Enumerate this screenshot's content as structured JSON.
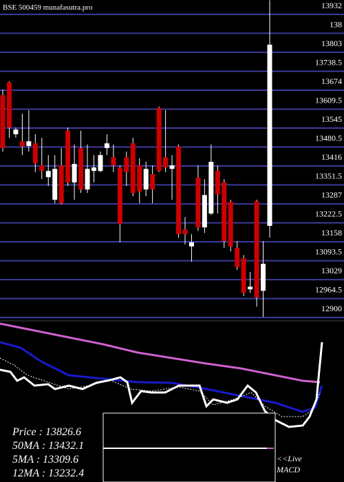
{
  "chart_data": {
    "type": "candlestick",
    "title": "BSE 500459 munafasutra.pro",
    "ylim": [
      12891,
      13981
    ],
    "yticks": [
      13932,
      {
        "value": 13867.5,
        "label": "138"
      },
      13803,
      13738.5,
      13674,
      13609.5,
      13545,
      13480.5,
      13416,
      13351.5,
      13287,
      13222.5,
      13158,
      13093.5,
      13029,
      12964.5,
      12900
    ],
    "grid": true,
    "grid_color": "#3c3c9c",
    "up_color": "#ffffff",
    "down_color": "#cc0000",
    "open": [
      13657,
      13700,
      13524,
      13500,
      13484,
      13493,
      13418,
      13378,
      13301,
      13418,
      13536,
      13360,
      13477,
      13336,
      13399,
      13399,
      13477,
      13446,
      13411,
      13446,
      13493,
      13418,
      13336,
      13388,
      13613,
      13446,
      13406,
      13482,
      13200,
      13142,
      13376,
      13207,
      13254,
      13399,
      13360,
      13294,
      13137,
      13102,
      12996,
      13296,
      12991,
      13212
    ],
    "high": [
      13676,
      13704,
      13547,
      13594,
      13606,
      13524,
      13512,
      13453,
      13453,
      13477,
      13547,
      13489,
      13536,
      13489,
      13453,
      13465,
      13524,
      13489,
      13418,
      13465,
      13512,
      13442,
      13430,
      13418,
      13618,
      13606,
      13453,
      13489,
      13242,
      13184,
      13418,
      13371,
      13489,
      13418,
      13371,
      13301,
      13160,
      13113,
      13055,
      13301,
      13160,
      13980
    ],
    "low": [
      13465,
      13512,
      13512,
      13453,
      13465,
      13395,
      13371,
      13348,
      13289,
      13285,
      13348,
      13301,
      13324,
      13324,
      13360,
      13395,
      13453,
      13395,
      13156,
      13348,
      13313,
      13289,
      13313,
      13289,
      13395,
      13395,
      13301,
      13172,
      13149,
      13090,
      13195,
      13188,
      13249,
      13254,
      13137,
      13125,
      13062,
      12973,
      12984,
      12937,
      12902,
      13172
    ],
    "close": [
      13477,
      13547,
      13540,
      13482,
      13500,
      13425,
      13399,
      13399,
      13406,
      13289,
      13360,
      13423,
      13336,
      13406,
      13411,
      13453,
      13493,
      13418,
      13219,
      13395,
      13324,
      13329,
      13406,
      13336,
      13399,
      13411,
      13418,
      13184,
      13184,
      13156,
      13207,
      13317,
      13430,
      13320,
      13160,
      13142,
      13071,
      12984,
      13005,
      12968,
      13083,
      13829
    ],
    "info": [
      "Price   : 13826.6",
      "50MA : 13432.1",
      "5MA : 13309.6",
      "12MA : 13232.4"
    ],
    "live_label": "<<Live",
    "macd_label": "MACD"
  }
}
